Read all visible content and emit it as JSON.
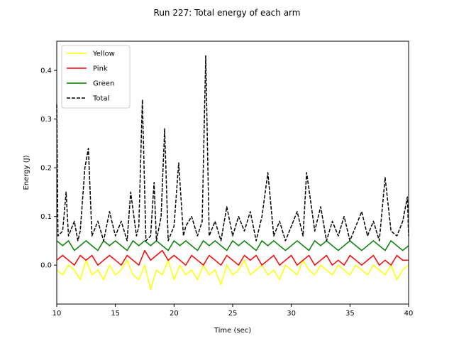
{
  "chart_data": {
    "type": "line",
    "title": "Run 227: Total energy of each arm",
    "xlabel": "Time (sec)",
    "ylabel": "Energy (J)",
    "xlim": [
      10,
      40
    ],
    "ylim": [
      -0.08,
      0.46
    ],
    "xticks": [
      "10",
      "15",
      "20",
      "25",
      "30",
      "35",
      "40"
    ],
    "yticks": [
      "0.0",
      "0.1",
      "0.2",
      "0.3",
      "0.4"
    ],
    "grid": false,
    "legend_position": "upper-left",
    "series": [
      {
        "name": "Yellow",
        "color": "#ffff00",
        "style": "solid",
        "x": [
          10.0,
          10.5,
          11.0,
          11.5,
          12.0,
          12.5,
          13.0,
          13.5,
          14.0,
          14.5,
          15.0,
          15.5,
          16.0,
          16.5,
          17.0,
          17.5,
          18.0,
          18.5,
          19.0,
          19.5,
          20.0,
          20.5,
          21.0,
          21.5,
          22.0,
          22.5,
          23.0,
          23.5,
          24.0,
          24.5,
          25.0,
          25.5,
          26.0,
          26.5,
          27.0,
          27.5,
          28.0,
          28.5,
          29.0,
          29.5,
          30.0,
          30.5,
          31.0,
          31.5,
          32.0,
          32.5,
          33.0,
          33.5,
          34.0,
          34.5,
          35.0,
          35.5,
          36.0,
          36.5,
          37.0,
          37.5,
          38.0,
          38.5,
          39.0,
          39.5,
          40.0
        ],
        "y": [
          -0.01,
          -0.02,
          0.0,
          -0.01,
          -0.03,
          0.01,
          -0.02,
          -0.01,
          -0.03,
          0.0,
          -0.02,
          -0.01,
          0.01,
          -0.02,
          -0.03,
          0.0,
          -0.05,
          -0.01,
          -0.02,
          0.01,
          -0.03,
          0.0,
          -0.02,
          -0.01,
          -0.03,
          0.0,
          -0.02,
          -0.01,
          -0.04,
          0.0,
          -0.02,
          -0.01,
          0.01,
          -0.02,
          -0.01,
          0.0,
          -0.02,
          -0.01,
          -0.03,
          0.0,
          -0.01,
          -0.02,
          0.01,
          -0.01,
          -0.02,
          0.0,
          -0.01,
          -0.02,
          0.0,
          -0.01,
          -0.02,
          0.0,
          -0.01,
          -0.02,
          0.0,
          -0.01,
          -0.02,
          0.0,
          -0.03,
          -0.01,
          0.0
        ]
      },
      {
        "name": "Pink",
        "color": "#ff0000",
        "style": "solid",
        "x": [
          10.0,
          10.5,
          11.0,
          11.5,
          12.0,
          12.5,
          13.0,
          13.5,
          14.0,
          14.5,
          15.0,
          15.5,
          16.0,
          16.5,
          17.0,
          17.5,
          18.0,
          18.5,
          19.0,
          19.5,
          20.0,
          20.5,
          21.0,
          21.5,
          22.0,
          22.5,
          23.0,
          23.5,
          24.0,
          24.5,
          25.0,
          25.5,
          26.0,
          26.5,
          27.0,
          27.5,
          28.0,
          28.5,
          29.0,
          29.5,
          30.0,
          30.5,
          31.0,
          31.5,
          32.0,
          32.5,
          33.0,
          33.5,
          34.0,
          34.5,
          35.0,
          35.5,
          36.0,
          36.5,
          37.0,
          37.5,
          38.0,
          38.5,
          39.0,
          39.5,
          40.0
        ],
        "y": [
          0.01,
          0.02,
          0.01,
          0.0,
          0.02,
          0.01,
          0.02,
          0.0,
          0.01,
          0.02,
          0.01,
          0.0,
          0.02,
          0.01,
          0.0,
          0.03,
          0.01,
          0.02,
          0.03,
          0.01,
          0.02,
          0.01,
          0.0,
          0.02,
          0.01,
          0.0,
          0.02,
          0.01,
          0.0,
          0.02,
          0.01,
          0.0,
          0.02,
          0.01,
          0.02,
          0.0,
          0.01,
          0.02,
          0.0,
          0.01,
          0.02,
          0.0,
          0.01,
          0.02,
          0.0,
          0.01,
          0.02,
          0.0,
          0.01,
          0.0,
          0.02,
          0.01,
          0.0,
          0.01,
          0.02,
          0.0,
          0.01,
          0.0,
          0.02,
          0.01,
          0.01
        ]
      },
      {
        "name": "Green",
        "color": "#008000",
        "style": "solid",
        "x": [
          10.0,
          10.5,
          11.0,
          11.5,
          12.0,
          12.5,
          13.0,
          13.5,
          14.0,
          14.5,
          15.0,
          15.5,
          16.0,
          16.5,
          17.0,
          17.5,
          18.0,
          18.5,
          19.0,
          19.5,
          20.0,
          20.5,
          21.0,
          21.5,
          22.0,
          22.5,
          23.0,
          23.5,
          24.0,
          24.5,
          25.0,
          25.5,
          26.0,
          26.5,
          27.0,
          27.5,
          28.0,
          28.5,
          29.0,
          29.5,
          30.0,
          30.5,
          31.0,
          31.5,
          32.0,
          32.5,
          33.0,
          33.5,
          34.0,
          34.5,
          35.0,
          35.5,
          36.0,
          36.5,
          37.0,
          37.5,
          38.0,
          38.5,
          39.0,
          39.5,
          40.0
        ],
        "y": [
          0.05,
          0.04,
          0.05,
          0.03,
          0.04,
          0.05,
          0.04,
          0.03,
          0.05,
          0.04,
          0.05,
          0.04,
          0.03,
          0.05,
          0.04,
          0.05,
          0.04,
          0.05,
          0.04,
          0.03,
          0.05,
          0.04,
          0.05,
          0.04,
          0.03,
          0.05,
          0.04,
          0.05,
          0.04,
          0.03,
          0.05,
          0.04,
          0.05,
          0.04,
          0.03,
          0.05,
          0.04,
          0.05,
          0.04,
          0.03,
          0.04,
          0.05,
          0.04,
          0.03,
          0.05,
          0.04,
          0.05,
          0.04,
          0.03,
          0.04,
          0.05,
          0.04,
          0.03,
          0.04,
          0.05,
          0.04,
          0.03,
          0.05,
          0.04,
          0.03,
          0.04
        ]
      },
      {
        "name": "Total",
        "color": "#000000",
        "style": "dashed",
        "x": [
          10.0,
          10.1,
          10.5,
          10.8,
          11.0,
          11.5,
          11.8,
          12.0,
          12.4,
          12.7,
          13.0,
          13.5,
          14.0,
          14.5,
          15.0,
          15.5,
          16.0,
          16.3,
          16.8,
          17.0,
          17.3,
          17.6,
          18.0,
          18.3,
          18.5,
          18.9,
          19.2,
          19.5,
          20.0,
          20.4,
          20.8,
          21.0,
          21.5,
          22.0,
          22.4,
          22.7,
          23.0,
          23.5,
          24.0,
          24.5,
          25.0,
          25.5,
          26.0,
          26.5,
          27.0,
          27.5,
          28.0,
          28.5,
          29.0,
          29.5,
          30.0,
          30.5,
          31.0,
          31.3,
          31.6,
          32.0,
          32.5,
          33.0,
          33.5,
          34.0,
          34.5,
          35.0,
          35.5,
          36.0,
          36.5,
          37.0,
          37.5,
          38.0,
          38.5,
          39.0,
          39.5,
          39.9,
          40.0
        ],
        "y": [
          0.33,
          0.06,
          0.07,
          0.15,
          0.06,
          0.09,
          0.05,
          0.07,
          0.2,
          0.24,
          0.06,
          0.09,
          0.05,
          0.11,
          0.06,
          0.09,
          0.05,
          0.15,
          0.06,
          0.08,
          0.34,
          0.05,
          0.06,
          0.17,
          0.05,
          0.1,
          0.28,
          0.05,
          0.08,
          0.21,
          0.06,
          0.08,
          0.1,
          0.06,
          0.09,
          0.43,
          0.06,
          0.09,
          0.05,
          0.12,
          0.06,
          0.1,
          0.07,
          0.11,
          0.05,
          0.1,
          0.19,
          0.06,
          0.09,
          0.05,
          0.08,
          0.11,
          0.06,
          0.19,
          0.14,
          0.07,
          0.12,
          0.05,
          0.09,
          0.06,
          0.1,
          0.05,
          0.08,
          0.11,
          0.06,
          0.09,
          0.05,
          0.18,
          0.07,
          0.06,
          0.09,
          0.14,
          0.06
        ]
      }
    ]
  }
}
